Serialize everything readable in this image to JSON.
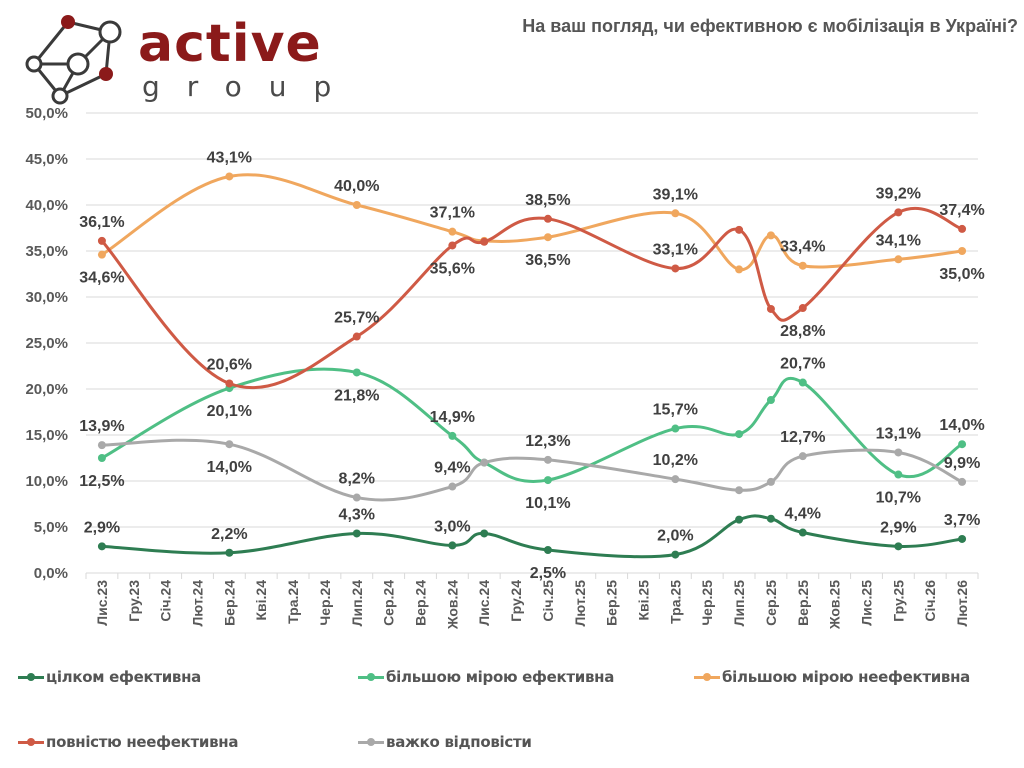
{
  "logo": {
    "word1": "active",
    "word2": "group"
  },
  "chart_data": {
    "type": "line",
    "title": "На ваш погляд, чи ефективною є мобілізація в Україні?",
    "xlabel": "",
    "ylabel": "",
    "ylim": [
      0,
      50
    ],
    "yticks": [
      "0,0%",
      "5,0%",
      "10,0%",
      "15,0%",
      "20,0%",
      "25,0%",
      "30,0%",
      "35,0%",
      "40,0%",
      "45,0%",
      "50,0%"
    ],
    "grid": true,
    "legend_position": "bottom",
    "categories": [
      "Лис.23",
      "Гру.23",
      "Січ.24",
      "Лют.24",
      "Бер.24",
      "Кві.24",
      "Тра.24",
      "Чер.24",
      "Лип.24",
      "Сер.24",
      "Вер.24",
      "Жов.24",
      "Лис.24",
      "Гру.24",
      "Січ.25",
      "Лют.25",
      "Бер.25",
      "Кві.25",
      "Тра.25",
      "Чер.25",
      "Лип.25",
      "Сер.25",
      "Вер.25",
      "Жов.25",
      "Лис.25",
      "Гру.25",
      "Січ.26",
      "Лют.26"
    ],
    "point_indices": [
      0,
      4,
      8,
      11,
      12,
      14,
      18,
      20,
      21,
      22,
      25,
      27
    ],
    "series": [
      {
        "name": "цілком ефективна",
        "color": "#2e7d52",
        "values": [
          2.9,
          2.2,
          4.3,
          3.0,
          4.3,
          2.5,
          2.0,
          5.8,
          5.9,
          4.4,
          2.9,
          3.7
        ],
        "labels": [
          "2,9%",
          "2,2%",
          "4,3%",
          "3,0%",
          "",
          "2,5%",
          "2,0%",
          "",
          "",
          "4,4%",
          "2,9%",
          "3,7%"
        ],
        "label_pos": [
          "above",
          "above",
          "above",
          "above",
          "above",
          "below",
          "above",
          "above",
          "above",
          "above",
          "above",
          "above"
        ]
      },
      {
        "name": "більшою мірою ефективна",
        "color": "#4fbf85",
        "values": [
          12.5,
          20.1,
          21.8,
          14.9,
          12.0,
          10.1,
          15.7,
          15.1,
          18.8,
          20.7,
          10.7,
          14.0
        ],
        "labels": [
          "12,5%",
          "20,1%",
          "21,8%",
          "14,9%",
          "",
          "10,1%",
          "15,7%",
          "",
          "",
          "20,7%",
          "10,7%",
          "14,0%"
        ],
        "label_pos": [
          "below",
          "below",
          "below",
          "above",
          "above",
          "below",
          "above",
          "above",
          "above",
          "above",
          "below",
          "above"
        ]
      },
      {
        "name": "більшою мірою неефективна",
        "color": "#f0a75e",
        "values": [
          34.6,
          43.1,
          40.0,
          37.1,
          36.1,
          36.5,
          39.1,
          33.0,
          36.7,
          33.4,
          34.1,
          35.0
        ],
        "labels": [
          "34,6%",
          "43,1%",
          "40,0%",
          "37,1%",
          "",
          "36,5%",
          "39,1%",
          "",
          "",
          "33,4%",
          "34,1%",
          "35,0%"
        ],
        "label_pos": [
          "below",
          "above",
          "above",
          "above",
          "above",
          "below",
          "above",
          "above",
          "above",
          "above",
          "above",
          "below"
        ]
      },
      {
        "name": "повністю неефективна",
        "color": "#cf5a45",
        "values": [
          36.1,
          20.6,
          25.7,
          35.6,
          36.0,
          38.5,
          33.1,
          37.3,
          28.7,
          28.8,
          39.2,
          37.4
        ],
        "labels": [
          "36,1%",
          "20,6%",
          "25,7%",
          "35,6%",
          "",
          "38,5%",
          "33,1%",
          "",
          "",
          "28,8%",
          "39,2%",
          "37,4%"
        ],
        "label_pos": [
          "above",
          "above",
          "above",
          "below",
          "above",
          "above",
          "above",
          "above",
          "above",
          "below",
          "above",
          "above"
        ]
      },
      {
        "name": "важко відповісти",
        "color": "#a9a9a9",
        "values": [
          13.9,
          14.0,
          8.2,
          9.4,
          12.0,
          12.3,
          10.2,
          9.0,
          9.9,
          12.7,
          13.1,
          9.9
        ],
        "labels": [
          "13,9%",
          "14,0%",
          "8,2%",
          "9,4%",
          "",
          "12,3%",
          "10,2%",
          "",
          "",
          "12,7%",
          "13,1%",
          "9,9%"
        ],
        "label_pos": [
          "above",
          "below",
          "above",
          "above",
          "above",
          "above",
          "above",
          "above",
          "above",
          "above",
          "above",
          "above"
        ]
      }
    ]
  }
}
